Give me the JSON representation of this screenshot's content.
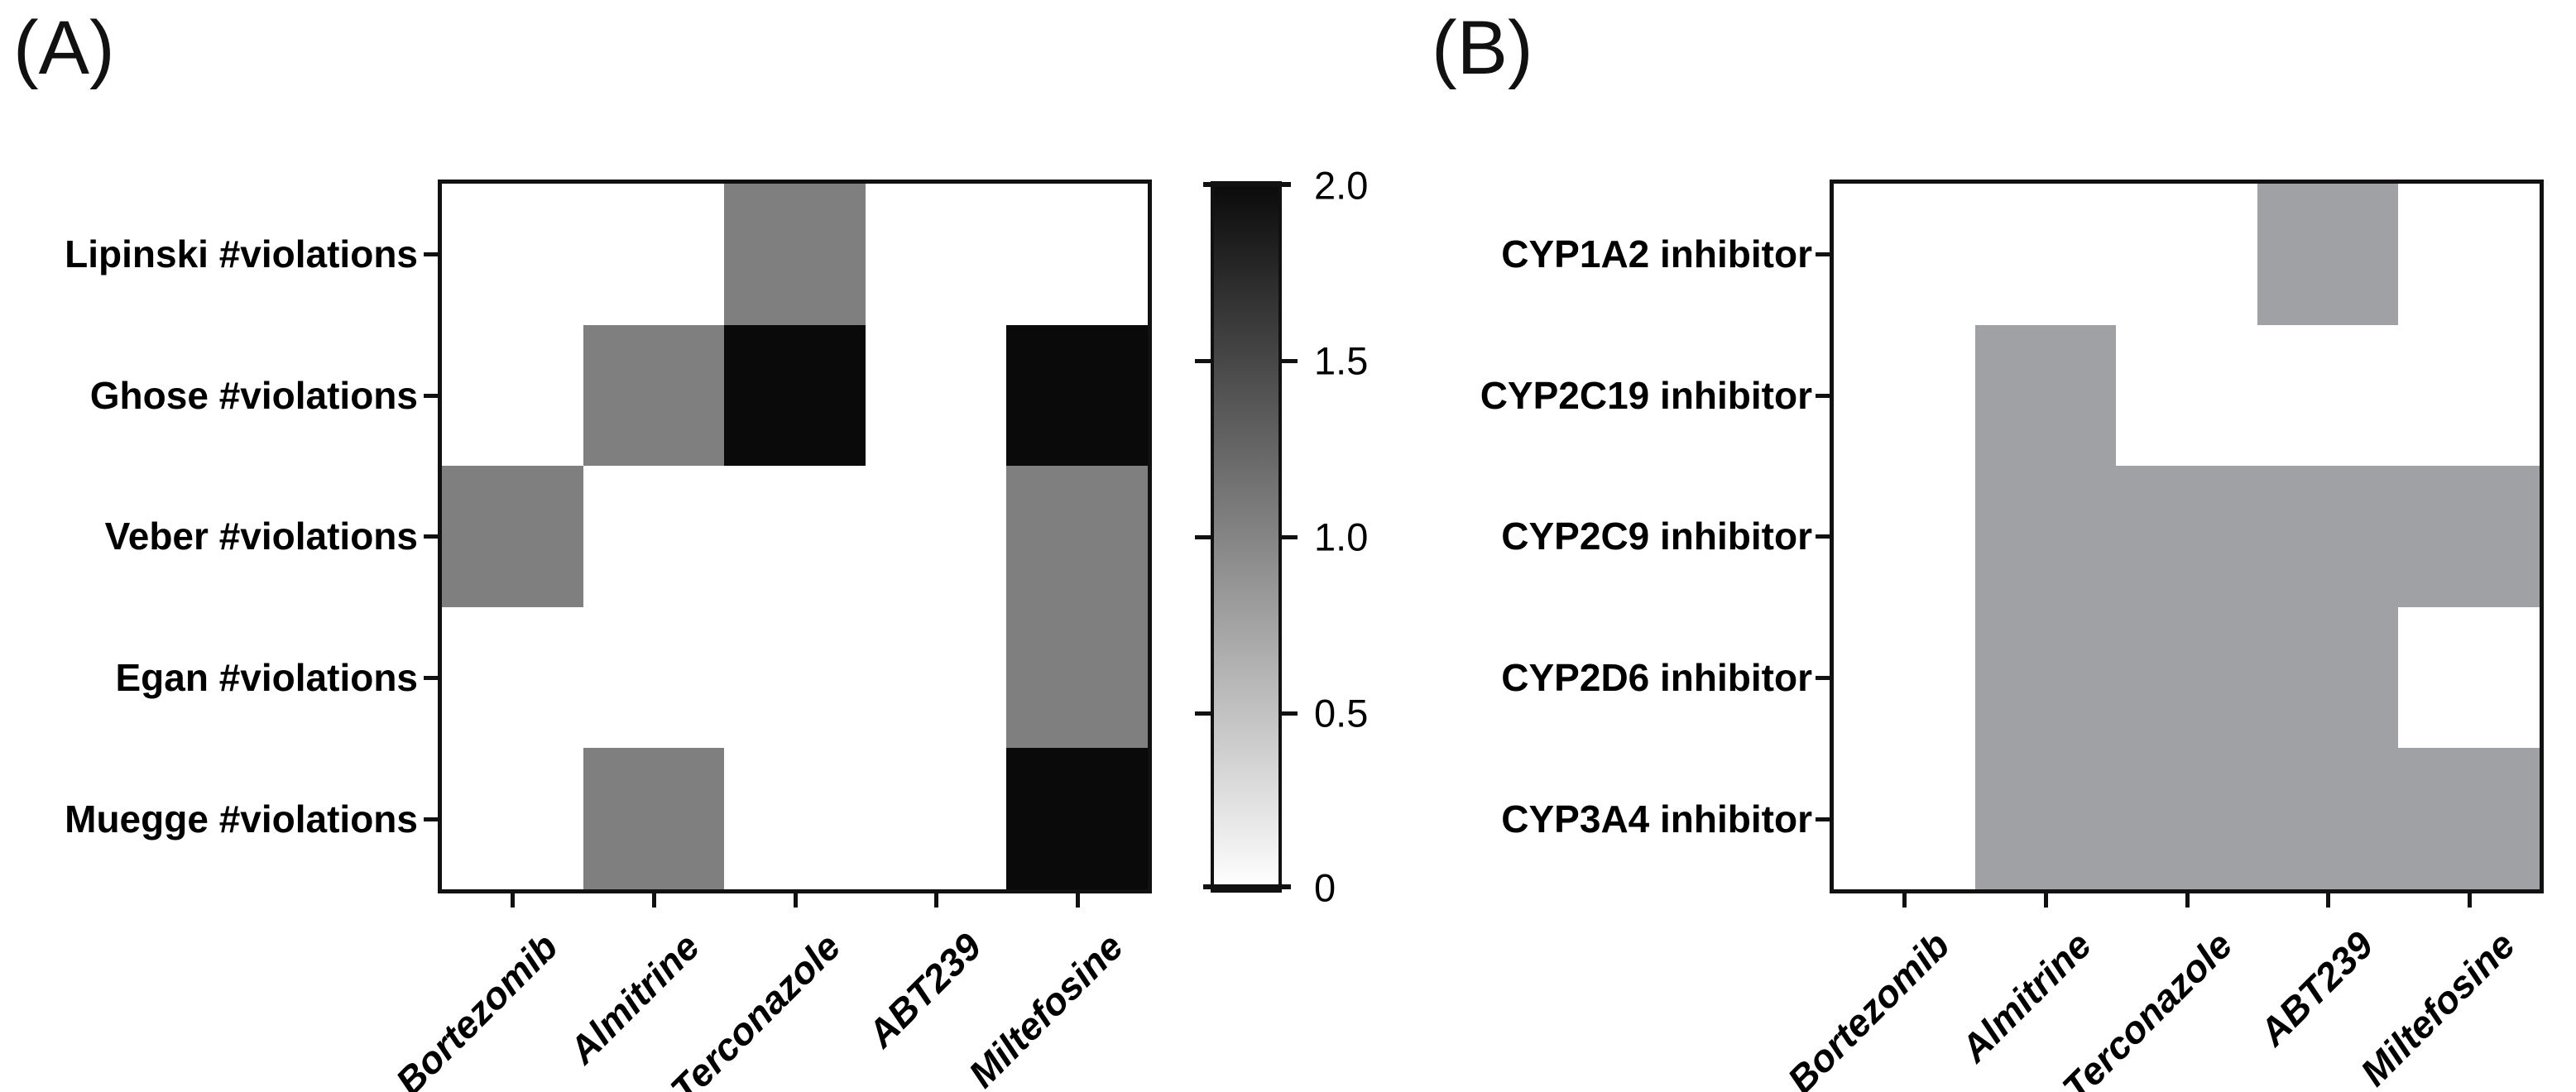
{
  "figure": {
    "panel_a_letter": "(A)",
    "panel_b_letter": "(B)",
    "background": "#ffffff",
    "axis_color": "#111111"
  },
  "chart_data": [
    {
      "type": "heatmap",
      "panel": "A",
      "rows": [
        "Lipinski #violations",
        "Ghose #violations",
        "Veber #violations",
        "Egan #violations",
        "Muegge #violations"
      ],
      "columns": [
        "Bortezomib",
        "Almitrine",
        "Terconazole",
        "ABT239",
        "Miltefosine"
      ],
      "matrix": [
        [
          0,
          0,
          1,
          0,
          0
        ],
        [
          0,
          1,
          2,
          0,
          2
        ],
        [
          1,
          0,
          0,
          0,
          1
        ],
        [
          0,
          0,
          0,
          0,
          1
        ],
        [
          0,
          1,
          0,
          0,
          2
        ]
      ],
      "value_colors": {
        "0": "#ffffff",
        "1": "#7f7f7f",
        "2": "#0a0a0a"
      },
      "value_range": [
        0,
        2
      ],
      "grid": false,
      "colorbar": {
        "position": "right",
        "tick_labels": [
          "2.0",
          "1.5",
          "1.0",
          "0.5",
          "0"
        ],
        "tick_values": [
          2.0,
          1.5,
          1.0,
          0.5,
          0
        ],
        "gradient_top": "#0a0a0a",
        "gradient_bottom": "#ffffff"
      }
    },
    {
      "type": "heatmap",
      "panel": "B",
      "rows": [
        "CYP1A2 inhibitor",
        "CYP2C19 inhibitor",
        "CYP2C9 inhibitor",
        "CYP2D6 inhibitor",
        "CYP3A4 inhibitor"
      ],
      "columns": [
        "Bortezomib",
        "Almitrine",
        "Terconazole",
        "ABT239",
        "Miltefosine"
      ],
      "matrix": [
        [
          0,
          0,
          0,
          1,
          0
        ],
        [
          0,
          1,
          0,
          0,
          0
        ],
        [
          0,
          1,
          1,
          1,
          1
        ],
        [
          0,
          1,
          1,
          1,
          0
        ],
        [
          0,
          1,
          1,
          1,
          1
        ]
      ],
      "value_colors": {
        "0": "#ffffff",
        "1": "#a0a1a5"
      },
      "value_range": [
        0,
        1
      ],
      "grid": false,
      "colorbar": null
    }
  ]
}
